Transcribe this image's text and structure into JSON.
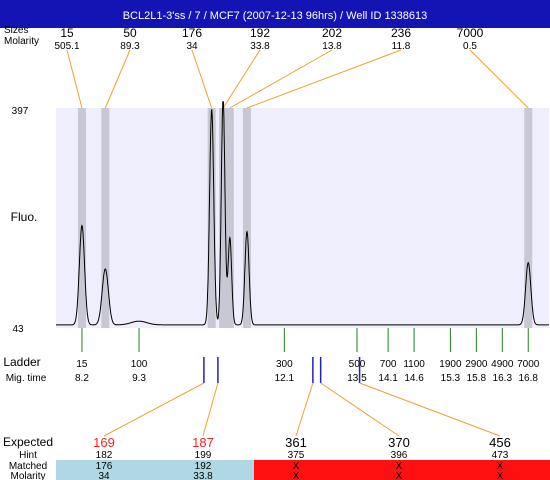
{
  "title": "BCL2L1-3'ss / 7 / MCF7 (2007-12-13 96hrs) / Well ID 1338613",
  "header_labels": {
    "sizes": "Sizes",
    "molarity": "Molarity"
  },
  "y_axis": {
    "label": "Fluo.",
    "max_label": "397",
    "min_label": "43"
  },
  "ladder_section": {
    "label": "Ladder",
    "mig_label": "Mig. time"
  },
  "expected_section": {
    "label": "Expected",
    "hint_label": "Hint",
    "matched_label": "Matched",
    "molarity_label": "Molarity"
  },
  "colors": {
    "title_bg": "#1414b4",
    "plot_bg": "#eeeefc",
    "peak_band": "#c8c8d4",
    "connector": "#f0a030",
    "ladder_tick": "#208020",
    "marker": "#2020c0",
    "matched_ok": "#b0d8e4",
    "matched_bad": "#ff1010",
    "expected_red": "#ff2020"
  },
  "chart_data": {
    "type": "line",
    "title": "BCL2L1-3'ss / 7 / MCF7 (2007-12-13 96hrs) / Well ID 1338613",
    "ylabel": "Fluo.",
    "ylim": [
      43,
      397
    ],
    "xlim": [
      7.7,
      17.2
    ],
    "peaks": [
      {
        "size": "15",
        "molarity": "505.1",
        "time": 8.2,
        "height": 160,
        "width": 0.05
      },
      {
        "size": "50",
        "molarity": "89.3",
        "time": 8.65,
        "height": 90,
        "width": 0.06
      },
      {
        "size": "176",
        "molarity": "34",
        "time": 10.7,
        "height": 347,
        "width": 0.04
      },
      {
        "size": "192",
        "molarity": "33.8",
        "time": 10.92,
        "height": 365,
        "width": 0.035
      },
      {
        "size": "202",
        "molarity": "13.8",
        "time": 11.05,
        "height": 140,
        "width": 0.035
      },
      {
        "size": "236",
        "molarity": "11.8",
        "time": 11.38,
        "height": 150,
        "width": 0.04
      },
      {
        "size": "7000",
        "molarity": "0.5",
        "time": 16.8,
        "height": 100,
        "width": 0.05
      }
    ],
    "baseline": 48,
    "bump": {
      "time": 9.3,
      "height": 6,
      "width": 0.15
    },
    "ladder": [
      {
        "size": "15",
        "time": "8.2"
      },
      {
        "size": "100",
        "time": "9.3"
      },
      {
        "size": "300",
        "time": "12.1"
      },
      {
        "size": "500",
        "time": "13.5"
      },
      {
        "size": "700",
        "time": "14.1"
      },
      {
        "size": "1100",
        "time": "14.6"
      },
      {
        "size": "1900",
        "time": "15.3"
      },
      {
        "size": "2900",
        "time": "15.8"
      },
      {
        "size": "4900",
        "time": "16.3"
      },
      {
        "size": "7000",
        "time": "16.8"
      }
    ],
    "markers": [
      10.55,
      10.82,
      12.65,
      12.8,
      13.55
    ],
    "expected": [
      {
        "expected": "169",
        "hint": "182",
        "matched": "176",
        "molarity": "34",
        "status": "ok",
        "marker": 10.55
      },
      {
        "expected": "187",
        "hint": "199",
        "matched": "192",
        "molarity": "33.8",
        "status": "ok",
        "marker": 10.82
      },
      {
        "expected": "361",
        "hint": "375",
        "matched": "X",
        "molarity": "X",
        "status": "bad",
        "marker": 12.65
      },
      {
        "expected": "370",
        "hint": "396",
        "matched": "X",
        "molarity": "X",
        "status": "bad",
        "marker": 12.8
      },
      {
        "expected": "456",
        "hint": "473",
        "matched": "X",
        "molarity": "X",
        "status": "bad",
        "marker": 13.55
      }
    ]
  }
}
